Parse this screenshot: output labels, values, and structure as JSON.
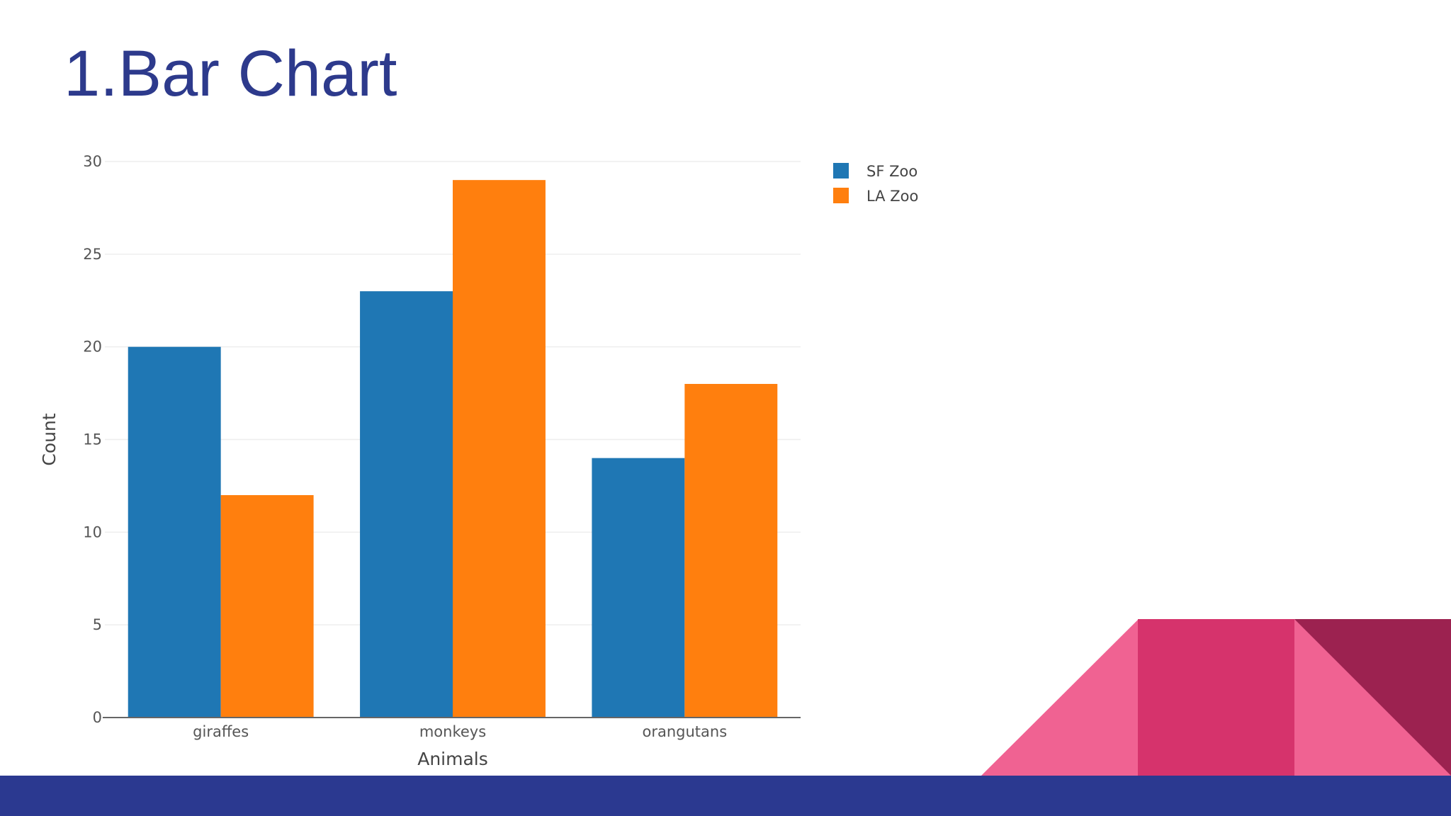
{
  "slide": {
    "title": "1.Bar Chart"
  },
  "chart_data": {
    "type": "bar",
    "categories": [
      "giraffes",
      "monkeys",
      "orangutans"
    ],
    "series": [
      {
        "name": "SF Zoo",
        "values": [
          20,
          23,
          14
        ],
        "color": "#1f77b4"
      },
      {
        "name": "LA Zoo",
        "values": [
          12,
          29,
          18
        ],
        "color": "#ff7f0e"
      }
    ],
    "title": "",
    "xlabel": "Animals",
    "ylabel": "Count",
    "ylim": [
      0,
      30
    ],
    "yticks": [
      0,
      5,
      10,
      15,
      20,
      25,
      30
    ],
    "grid": true,
    "legend": "top-right"
  },
  "decor_colors": {
    "light_pink": "#f06292",
    "pink": "#d6336c",
    "dark_magenta": "#9c2250",
    "navy": "#2b3990"
  }
}
